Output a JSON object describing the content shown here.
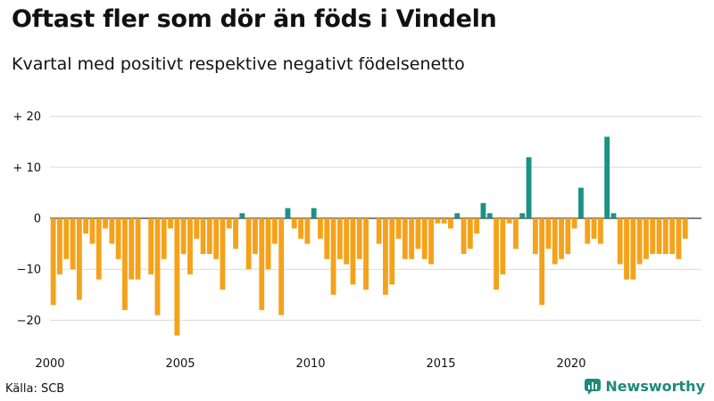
{
  "chart_data": {
    "type": "bar",
    "title": "Oftast fler som dör än föds i Vindeln",
    "subtitle": "Kvartal med positivt respektive negativt födelsenetto",
    "source": "Källa: SCB",
    "x_start": 2000,
    "x_step": 0.25,
    "x_ticks": [
      2000,
      2005,
      2010,
      2015,
      2020
    ],
    "x_tick_labels": [
      "2000",
      "2005",
      "2010",
      "2015",
      "2020"
    ],
    "ylim": [
      -25,
      22
    ],
    "y_ticks": [
      20,
      10,
      0,
      -10,
      -20
    ],
    "y_tick_labels": [
      "+ 20",
      "+ 10",
      "0",
      "−10",
      "−20"
    ],
    "colors": {
      "positive": "#1a9284",
      "negative": "#f5a21b",
      "grid": "#d9d9d9",
      "axis": "#333333"
    },
    "values": [
      -17,
      -11,
      -8,
      -10,
      -16,
      -3,
      -5,
      -12,
      -2,
      -5,
      -8,
      -18,
      -12,
      -12,
      0,
      -11,
      -19,
      -8,
      -2,
      -23,
      -7,
      -11,
      -4,
      -7,
      -7,
      -8,
      -14,
      -2,
      -6,
      1,
      -10,
      -7,
      -18,
      -10,
      -5,
      -19,
      2,
      -2,
      -4,
      -5,
      2,
      -4,
      -8,
      -15,
      -8,
      -9,
      -13,
      -8,
      -14,
      0,
      -5,
      -15,
      -13,
      -4,
      -8,
      -8,
      -6,
      -8,
      -9,
      -1,
      -1,
      -2,
      1,
      -7,
      -6,
      -3,
      3,
      1,
      -14,
      -11,
      -1,
      -6,
      1,
      12,
      -7,
      -17,
      -6,
      -9,
      -8,
      -7,
      -2,
      6,
      -5,
      -4,
      -5,
      16,
      1,
      -9,
      -12,
      -12,
      -9,
      -8,
      -7,
      -7,
      -7,
      -7,
      -8,
      -4
    ]
  },
  "brand": {
    "name": "Newsworthy"
  }
}
